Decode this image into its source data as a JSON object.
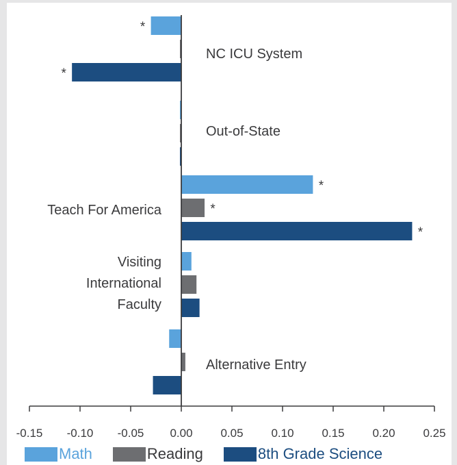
{
  "chart_data": {
    "type": "bar",
    "orientation": "horizontal",
    "categories": [
      "NC ICU System",
      "Out-of-State",
      "Teach For America",
      "Visiting International Faculty",
      "Alternative Entry"
    ],
    "category_label_lines": [
      [
        "NC ICU System"
      ],
      [
        "Out-of-State"
      ],
      [
        "Teach For America"
      ],
      [
        "Visiting",
        "International",
        "Faculty"
      ],
      [
        "Alternative Entry"
      ]
    ],
    "series": [
      {
        "name": "Math",
        "color": "#5aa3dc",
        "values": [
          -0.03,
          -0.001,
          0.13,
          0.01,
          -0.012
        ],
        "significant": [
          true,
          false,
          true,
          false,
          false
        ]
      },
      {
        "name": "Reading",
        "color": "#6d6e71",
        "values": [
          -0.001,
          -0.001,
          0.023,
          0.015,
          0.004
        ],
        "significant": [
          false,
          false,
          true,
          false,
          false
        ]
      },
      {
        "name": "8th Grade Science",
        "color": "#1c4d80",
        "values": [
          -0.108,
          -0.001,
          0.228,
          0.018,
          -0.028
        ],
        "significant": [
          true,
          false,
          true,
          false,
          false
        ]
      }
    ],
    "significance_marker": "*",
    "xlim": [
      -0.15,
      0.25
    ],
    "xticks": [
      -0.15,
      -0.1,
      -0.05,
      0.0,
      0.05,
      0.1,
      0.15,
      0.2,
      0.25
    ],
    "xtick_labels": [
      "-0.15",
      "-0.10",
      "-0.05",
      "0.00",
      "0.05",
      "0.10",
      "0.15",
      "0.20",
      "0.25"
    ],
    "legend_position": "bottom",
    "grid": false
  },
  "legend": {
    "items": [
      {
        "label": "Math",
        "color": "#5aa3dc",
        "text_color": "#5aa3dc"
      },
      {
        "label": "Reading",
        "color": "#6d6e71",
        "text_color": "#3a3a3c"
      },
      {
        "label": "8th Grade Science",
        "color": "#1c4d80",
        "text_color": "#1c4d80"
      }
    ]
  }
}
